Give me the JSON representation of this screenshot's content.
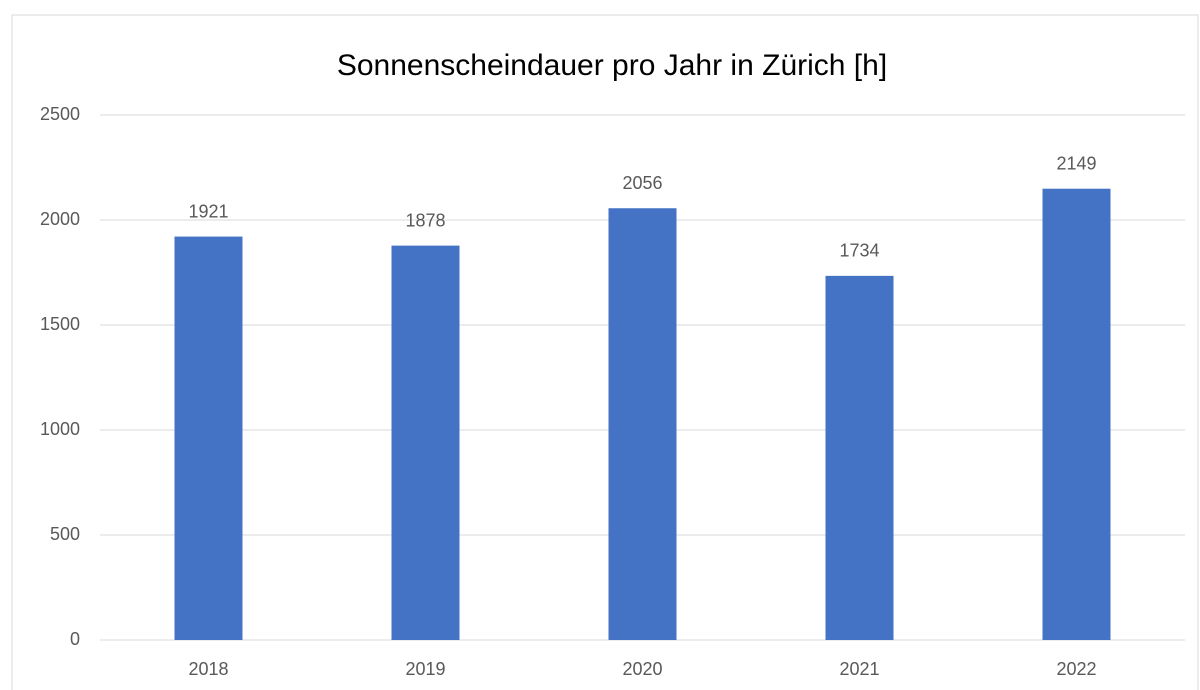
{
  "chart_data": {
    "type": "bar",
    "title": "Sonnenscheindauer pro Jahr in Zürich [h]",
    "categories": [
      "2018",
      "2019",
      "2020",
      "2021",
      "2022"
    ],
    "values": [
      1921,
      1878,
      2056,
      1734,
      2149
    ],
    "color": "#4472c4",
    "ylim": [
      0,
      2500
    ],
    "yticks": [
      0,
      500,
      1000,
      1500,
      2000,
      2500
    ],
    "grid": true
  }
}
